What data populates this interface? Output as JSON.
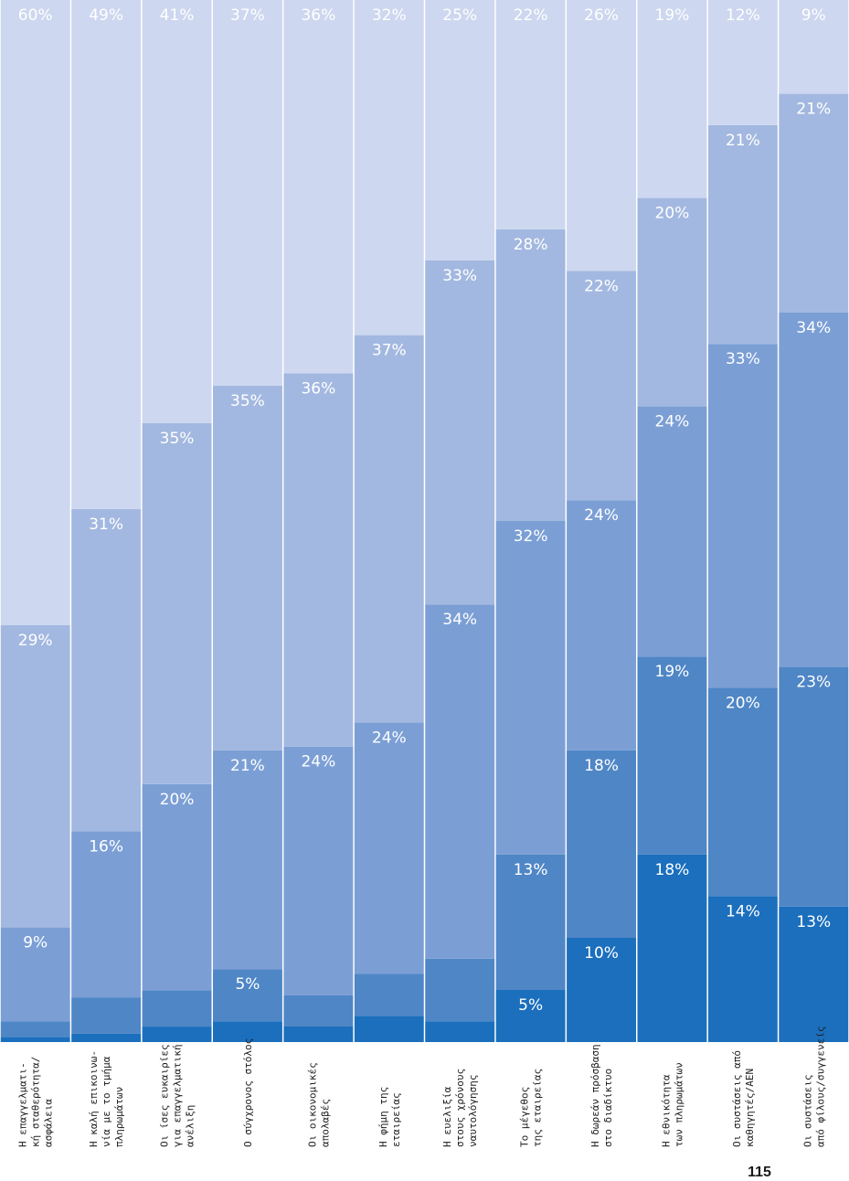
{
  "page_number": "115",
  "chart_data": {
    "type": "bar",
    "stacked": true,
    "normalized": true,
    "grid": false,
    "legend": "none",
    "categories": [
      [
        "Η επαγγελματι-",
        "κή σταθερότητα/",
        "ασφάλεια"
      ],
      [
        "Η καλή επικοινω-",
        "νία με το τμήμα",
        "πληρωμάτων"
      ],
      [
        "Οι ίσες ευκαιρίες",
        "για επαγγελματική",
        "ανέλιξη"
      ],
      [
        "Ο σύγχρονος στόλος"
      ],
      [
        "Οι οικονομικές",
        "απολαβές"
      ],
      [
        "Η φήμη της",
        "εταιρείας"
      ],
      [
        "Η ευελιξία",
        "στους χρόνους",
        "ναυτολόγησης"
      ],
      [
        "Το μέγεθος",
        "της εταιρείας"
      ],
      [
        "Η δωρεάν πρόσβαση",
        "στο διαδίκτυο"
      ],
      [
        "Η εθνικότητα",
        "των πληρωμάτων"
      ],
      [
        "Οι συστάσεις από",
        "καθηγητές/ΑΕΝ"
      ],
      [
        "Οι συστάσεις",
        "από φίλους/συγγενείς"
      ]
    ],
    "series": [
      {
        "color": "#1b6fbd",
        "values": [
          0.5,
          0.8,
          1.5,
          2,
          1.5,
          2.5,
          2,
          5,
          10,
          18,
          14,
          13
        ]
      },
      {
        "color": "#4f86c6",
        "values": [
          1.5,
          3.5,
          3.5,
          5,
          3,
          4,
          6,
          13,
          18,
          19,
          20,
          23
        ]
      },
      {
        "color": "#7b9fd5",
        "values": [
          9,
          16,
          20,
          21,
          24,
          24,
          34,
          32,
          24,
          24,
          33,
          34
        ]
      },
      {
        "color": "#a3b8e0",
        "values": [
          29,
          31,
          35,
          35,
          36,
          37,
          33,
          28,
          22,
          20,
          21,
          21
        ]
      },
      {
        "color": "#cdd7ef",
        "values": [
          60,
          49,
          41,
          37,
          36,
          32,
          25,
          22,
          26,
          19,
          12,
          9
        ]
      }
    ],
    "data_labels": [
      [
        null,
        null,
        "9%",
        "29%",
        "60%"
      ],
      [
        null,
        null,
        "16%",
        "31%",
        "49%"
      ],
      [
        null,
        null,
        "20%",
        "35%",
        "41%"
      ],
      [
        null,
        "5%",
        "21%",
        "35%",
        "37%"
      ],
      [
        null,
        null,
        "24%",
        "36%",
        "36%"
      ],
      [
        null,
        null,
        "24%",
        "37%",
        "32%"
      ],
      [
        null,
        null,
        "34%",
        "33%",
        "25%"
      ],
      [
        "5%",
        "13%",
        "32%",
        "28%",
        "22%"
      ],
      [
        "10%",
        "18%",
        "24%",
        "22%",
        "26%"
      ],
      [
        "18%",
        "19%",
        "24%",
        "20%",
        "19%"
      ],
      [
        "14%",
        "20%",
        "33%",
        "21%",
        "12%"
      ],
      [
        "13%",
        "23%",
        "34%",
        "21%",
        "9%"
      ]
    ],
    "ylim": [
      0,
      100
    ]
  }
}
